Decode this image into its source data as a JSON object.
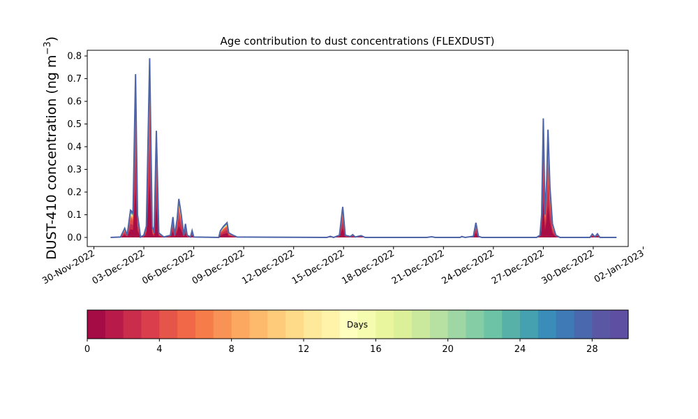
{
  "chart_data": {
    "type": "area",
    "title": "Age contribution to dust concentrations (FLEXDUST)",
    "ylabel": "DUST-410 concentration (ng m",
    "ylabel_sup": "−3",
    "ylabel_close": ")",
    "xlabel": "",
    "x_start": "2022-11-30",
    "xlim_days": [
      -0.4,
      32.1
    ],
    "ylim": [
      -0.04,
      0.825
    ],
    "yticks": [
      0.0,
      0.1,
      0.2,
      0.3,
      0.4,
      0.5,
      0.6,
      0.7,
      0.8
    ],
    "ytick_labels": [
      "0.0",
      "0.1",
      "0.2",
      "0.3",
      "0.4",
      "0.5",
      "0.6",
      "0.7",
      "0.8"
    ],
    "xtick_days": [
      0,
      3,
      6,
      9,
      12,
      15,
      18,
      21,
      24,
      27,
      30,
      33
    ],
    "xtick_labels": [
      "30-Nov-2022",
      "03-Dec-2022",
      "06-Dec-2022",
      "09-Dec-2022",
      "12-Dec-2022",
      "15-Dec-2022",
      "18-Dec-2022",
      "21-Dec-2022",
      "24-Dec-2022",
      "27-Dec-2022",
      "30-Dec-2022",
      "02-Jan-2023"
    ],
    "series_range_days": [
      1.0,
      31.4
    ],
    "total_concentration": [
      {
        "x": 1.0,
        "y": 0.0
      },
      {
        "x": 1.6,
        "y": 0.002
      },
      {
        "x": 1.85,
        "y": 0.04
      },
      {
        "x": 2.0,
        "y": 0.01
      },
      {
        "x": 2.2,
        "y": 0.12
      },
      {
        "x": 2.35,
        "y": 0.11
      },
      {
        "x": 2.5,
        "y": 0.72
      },
      {
        "x": 2.62,
        "y": 0.1
      },
      {
        "x": 2.8,
        "y": 0.002
      },
      {
        "x": 3.0,
        "y": 0.01
      },
      {
        "x": 3.15,
        "y": 0.05
      },
      {
        "x": 3.35,
        "y": 0.79
      },
      {
        "x": 3.5,
        "y": 0.05
      },
      {
        "x": 3.62,
        "y": 0.02
      },
      {
        "x": 3.75,
        "y": 0.47
      },
      {
        "x": 3.9,
        "y": 0.02
      },
      {
        "x": 4.2,
        "y": 0.002
      },
      {
        "x": 4.6,
        "y": 0.01
      },
      {
        "x": 4.75,
        "y": 0.09
      },
      {
        "x": 4.85,
        "y": 0.01
      },
      {
        "x": 5.0,
        "y": 0.08
      },
      {
        "x": 5.1,
        "y": 0.17
      },
      {
        "x": 5.25,
        "y": 0.1
      },
      {
        "x": 5.4,
        "y": 0.01
      },
      {
        "x": 5.5,
        "y": 0.06
      },
      {
        "x": 5.6,
        "y": 0.01
      },
      {
        "x": 5.8,
        "y": 0.002
      },
      {
        "x": 5.9,
        "y": 0.03
      },
      {
        "x": 6.0,
        "y": 0.002
      },
      {
        "x": 7.5,
        "y": 0.0
      },
      {
        "x": 7.6,
        "y": 0.03
      },
      {
        "x": 7.8,
        "y": 0.05
      },
      {
        "x": 8.0,
        "y": 0.065
      },
      {
        "x": 8.1,
        "y": 0.02
      },
      {
        "x": 8.3,
        "y": 0.012
      },
      {
        "x": 8.6,
        "y": 0.002
      },
      {
        "x": 14.0,
        "y": 0.0
      },
      {
        "x": 14.2,
        "y": 0.005
      },
      {
        "x": 14.4,
        "y": 0.0
      },
      {
        "x": 14.75,
        "y": 0.01
      },
      {
        "x": 14.95,
        "y": 0.135
      },
      {
        "x": 15.1,
        "y": 0.01
      },
      {
        "x": 15.4,
        "y": 0.004
      },
      {
        "x": 15.55,
        "y": 0.012
      },
      {
        "x": 15.7,
        "y": 0.002
      },
      {
        "x": 16.05,
        "y": 0.008
      },
      {
        "x": 16.3,
        "y": 0.0
      },
      {
        "x": 20.0,
        "y": 0.0
      },
      {
        "x": 20.3,
        "y": 0.003
      },
      {
        "x": 20.5,
        "y": 0.0
      },
      {
        "x": 22.0,
        "y": 0.0
      },
      {
        "x": 22.1,
        "y": 0.004
      },
      {
        "x": 22.3,
        "y": 0.0
      },
      {
        "x": 22.8,
        "y": 0.005
      },
      {
        "x": 22.95,
        "y": 0.065
      },
      {
        "x": 23.1,
        "y": 0.005
      },
      {
        "x": 23.3,
        "y": 0.0
      },
      {
        "x": 26.6,
        "y": 0.0
      },
      {
        "x": 26.8,
        "y": 0.01
      },
      {
        "x": 26.9,
        "y": 0.1
      },
      {
        "x": 27.0,
        "y": 0.525
      },
      {
        "x": 27.1,
        "y": 0.1
      },
      {
        "x": 27.2,
        "y": 0.25
      },
      {
        "x": 27.28,
        "y": 0.475
      },
      {
        "x": 27.4,
        "y": 0.22
      },
      {
        "x": 27.55,
        "y": 0.06
      },
      {
        "x": 27.75,
        "y": 0.01
      },
      {
        "x": 28.0,
        "y": 0.0
      },
      {
        "x": 29.8,
        "y": 0.0
      },
      {
        "x": 29.95,
        "y": 0.015
      },
      {
        "x": 30.1,
        "y": 0.003
      },
      {
        "x": 30.25,
        "y": 0.016
      },
      {
        "x": 30.4,
        "y": 0.0
      },
      {
        "x": 31.4,
        "y": 0.0
      }
    ],
    "age_layers": [
      {
        "days": 29,
        "fraction": 1.0,
        "color": "#4e62ab"
      },
      {
        "days": 27,
        "fraction": 0.96,
        "color": "#4182b6"
      },
      {
        "days": 24,
        "fraction": 0.92,
        "color": "#5bb3a9"
      },
      {
        "days": 20,
        "fraction": 0.89,
        "color": "#9ed8a3"
      },
      {
        "days": 16,
        "fraction": 0.87,
        "color": "#e5f49b"
      },
      {
        "days": 12,
        "fraction": 0.85,
        "color": "#fed582"
      },
      {
        "days": 8,
        "fraction": 0.8,
        "color": "#fb9a59"
      },
      {
        "days": 5,
        "fraction": 0.74,
        "color": "#ef6145"
      },
      {
        "days": 3,
        "fraction": 0.66,
        "color": "#de4a4d"
      },
      {
        "days": 1,
        "fraction": 0.5,
        "color": "#c82d4c"
      },
      {
        "days": 0,
        "fraction": 0.3,
        "color": "#a90d45"
      }
    ],
    "total_line_color": "#4f65a9",
    "colorbar": {
      "label": "Days",
      "range": [
        0,
        30
      ],
      "ticks": [
        0,
        4,
        8,
        12,
        16,
        20,
        24,
        28
      ],
      "tick_labels": [
        "0",
        "4",
        "8",
        "12",
        "16",
        "20",
        "24",
        "28"
      ],
      "colors": [
        "#a50c45",
        "#b81b4a",
        "#c92d4b",
        "#da3e4d",
        "#e55549",
        "#f06847",
        "#f67c4a",
        "#f99355",
        "#fca861",
        "#fdba6d",
        "#fdcb7a",
        "#fedb88",
        "#fee899",
        "#fff3a9",
        "#fefebe",
        "#f5fbaf",
        "#eaf69e",
        "#dcf09a",
        "#cbe99d",
        "#b6e1a2",
        "#9fd7a4",
        "#85cda5",
        "#6cc3a5",
        "#58b1a9",
        "#45a1b0",
        "#3a8db8",
        "#3f7ab6",
        "#4a68ad",
        "#5a58a5",
        "#5e4fa2"
      ]
    }
  }
}
